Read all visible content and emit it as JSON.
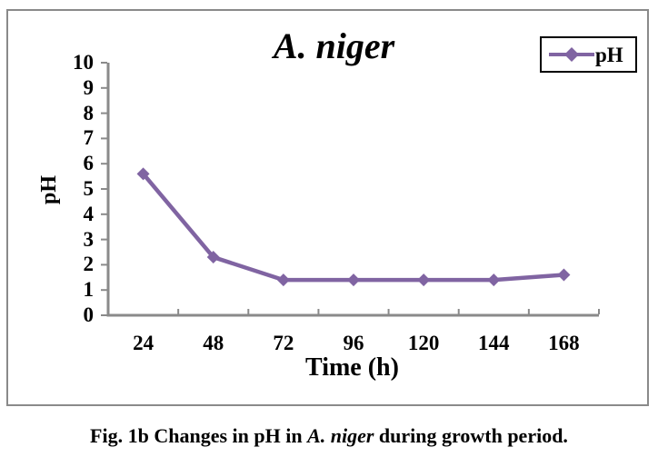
{
  "figure": {
    "caption": {
      "prefix": "Fig. 1b Changes in pH in ",
      "species": "A. niger",
      "suffix": " during growth period."
    }
  },
  "legend": {
    "label": "pH"
  },
  "chart_data": {
    "type": "line",
    "title": "A. niger",
    "xlabel": "Time (h)",
    "ylabel": "pH",
    "categories": [
      24,
      48,
      72,
      96,
      120,
      144,
      168
    ],
    "series": [
      {
        "name": "pH",
        "values": [
          5.6,
          2.3,
          1.4,
          1.4,
          1.4,
          1.4,
          1.6
        ]
      }
    ],
    "ylim": [
      0,
      10
    ],
    "ytick_step": 1,
    "grid": false,
    "legend_position": "top-right",
    "marker": "diamond",
    "colors": {
      "line": "#8064A2",
      "axis": "#8a8a8a",
      "text": "#000000",
      "frame": "#8a8a8a"
    }
  }
}
